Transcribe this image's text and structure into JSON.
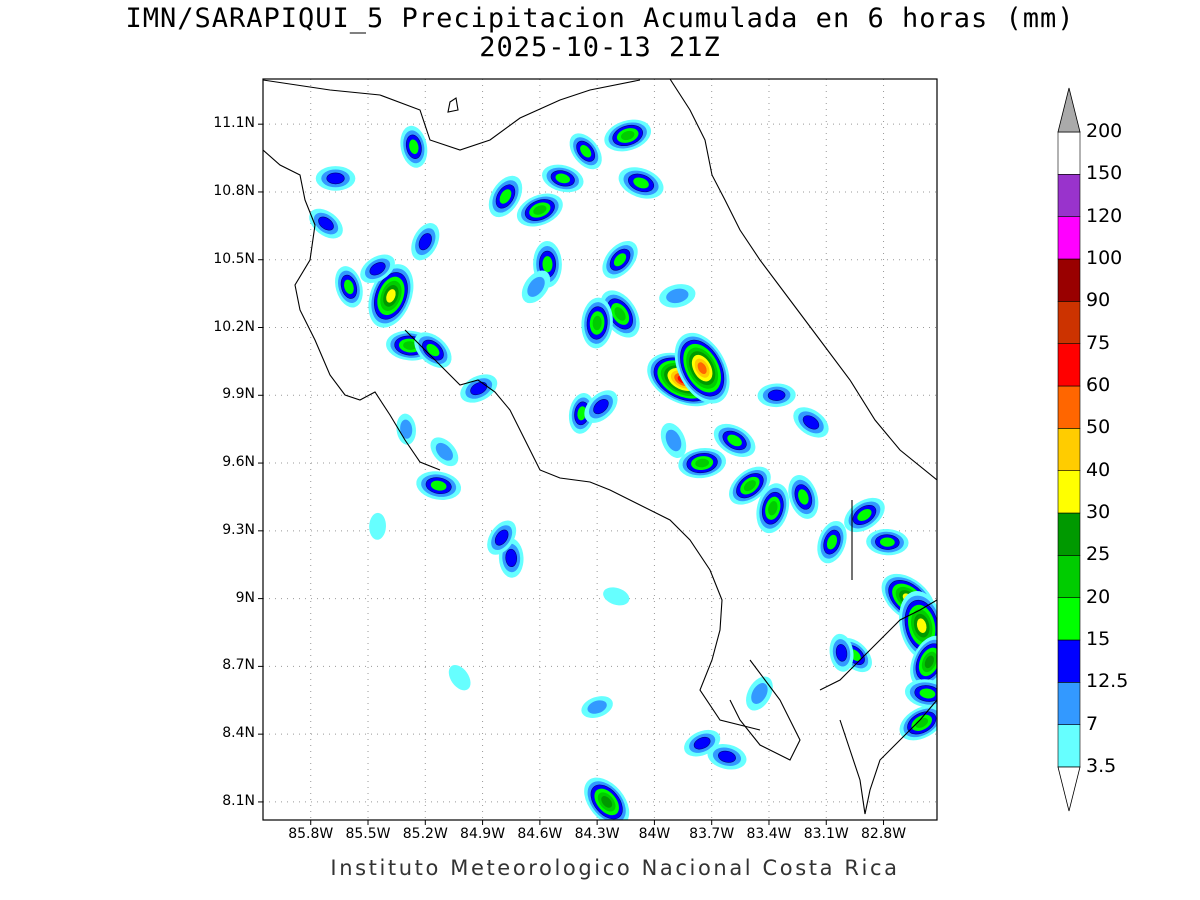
{
  "title": "IMN/SARAPIQUI_5 Precipitacion Acumulada en 6 horas (mm)",
  "subtitle": "2025-10-13 21Z",
  "footer": "Instituto Meteorologico Nacional Costa Rica",
  "map": {
    "lon_range": [
      -86.05,
      -82.52
    ],
    "lat_range": [
      8.02,
      11.3
    ],
    "gridlines": "dotted",
    "lat_ticks": [
      {
        "value": 11.1,
        "label": "11.1N"
      },
      {
        "value": 10.8,
        "label": "10.8N"
      },
      {
        "value": 10.5,
        "label": "10.5N"
      },
      {
        "value": 10.2,
        "label": "10.2N"
      },
      {
        "value": 9.9,
        "label": "9.9N"
      },
      {
        "value": 9.6,
        "label": "9.6N"
      },
      {
        "value": 9.3,
        "label": "9.3N"
      },
      {
        "value": 9.0,
        "label": "9N"
      },
      {
        "value": 8.7,
        "label": "8.7N"
      },
      {
        "value": 8.4,
        "label": "8.4N"
      },
      {
        "value": 8.1,
        "label": "8.1N"
      }
    ],
    "lon_ticks": [
      {
        "value": -85.8,
        "label": "85.8W"
      },
      {
        "value": -85.5,
        "label": "85.5W"
      },
      {
        "value": -85.2,
        "label": "85.2W"
      },
      {
        "value": -84.9,
        "label": "84.9W"
      },
      {
        "value": -84.6,
        "label": "84.6W"
      },
      {
        "value": -84.3,
        "label": "84.3W"
      },
      {
        "value": -84.0,
        "label": "84W"
      },
      {
        "value": -83.7,
        "label": "83.7W"
      },
      {
        "value": -83.4,
        "label": "83.4W"
      },
      {
        "value": -83.1,
        "label": "83.1W"
      },
      {
        "value": -82.8,
        "label": "82.8W"
      }
    ],
    "precip_cells": [
      {
        "lon": -85.67,
        "lat": 10.86,
        "mm": 14
      },
      {
        "lon": -85.72,
        "lat": 10.66,
        "mm": 13
      },
      {
        "lon": -85.6,
        "lat": 10.38,
        "mm": 16
      },
      {
        "lon": -85.38,
        "lat": 10.34,
        "mm": 33
      },
      {
        "lon": -85.45,
        "lat": 10.46,
        "mm": 13
      },
      {
        "lon": -85.28,
        "lat": 10.12,
        "mm": 20
      },
      {
        "lon": -85.16,
        "lat": 10.1,
        "mm": 17
      },
      {
        "lon": -85.26,
        "lat": 11.0,
        "mm": 16
      },
      {
        "lon": -85.2,
        "lat": 10.58,
        "mm": 14
      },
      {
        "lon": -84.92,
        "lat": 9.93,
        "mm": 14
      },
      {
        "lon": -85.13,
        "lat": 9.5,
        "mm": 18
      },
      {
        "lon": -85.1,
        "lat": 9.65,
        "mm": 10
      },
      {
        "lon": -85.3,
        "lat": 9.75,
        "mm": 8
      },
      {
        "lon": -84.78,
        "lat": 10.78,
        "mm": 18
      },
      {
        "lon": -84.6,
        "lat": 10.72,
        "mm": 20
      },
      {
        "lon": -84.48,
        "lat": 10.86,
        "mm": 16
      },
      {
        "lon": -84.36,
        "lat": 10.98,
        "mm": 15
      },
      {
        "lon": -84.56,
        "lat": 10.48,
        "mm": 19
      },
      {
        "lon": -84.62,
        "lat": 10.38,
        "mm": 12
      },
      {
        "lon": -84.14,
        "lat": 11.05,
        "mm": 20
      },
      {
        "lon": -84.07,
        "lat": 10.84,
        "mm": 19
      },
      {
        "lon": -84.18,
        "lat": 10.26,
        "mm": 23
      },
      {
        "lon": -84.3,
        "lat": 10.22,
        "mm": 22
      },
      {
        "lon": -84.18,
        "lat": 10.5,
        "mm": 17
      },
      {
        "lon": -83.88,
        "lat": 10.34,
        "mm": 12
      },
      {
        "lon": -83.85,
        "lat": 9.97,
        "mm": 65
      },
      {
        "lon": -83.75,
        "lat": 10.02,
        "mm": 55
      },
      {
        "lon": -84.38,
        "lat": 9.82,
        "mm": 15
      },
      {
        "lon": -84.28,
        "lat": 9.85,
        "mm": 14
      },
      {
        "lon": -83.75,
        "lat": 9.6,
        "mm": 20
      },
      {
        "lon": -83.58,
        "lat": 9.7,
        "mm": 18
      },
      {
        "lon": -83.9,
        "lat": 9.7,
        "mm": 12
      },
      {
        "lon": -83.38,
        "lat": 9.4,
        "mm": 22
      },
      {
        "lon": -83.5,
        "lat": 9.5,
        "mm": 20
      },
      {
        "lon": -83.36,
        "lat": 9.9,
        "mm": 13
      },
      {
        "lon": -83.18,
        "lat": 9.78,
        "mm": 14
      },
      {
        "lon": -83.22,
        "lat": 9.45,
        "mm": 18
      },
      {
        "lon": -83.07,
        "lat": 9.25,
        "mm": 17
      },
      {
        "lon": -82.9,
        "lat": 9.37,
        "mm": 18
      },
      {
        "lon": -82.78,
        "lat": 9.25,
        "mm": 16
      },
      {
        "lon": -82.67,
        "lat": 9.0,
        "mm": 30
      },
      {
        "lon": -82.6,
        "lat": 8.88,
        "mm": 36
      },
      {
        "lon": -82.56,
        "lat": 8.72,
        "mm": 25
      },
      {
        "lon": -82.6,
        "lat": 8.45,
        "mm": 20
      },
      {
        "lon": -82.57,
        "lat": 8.58,
        "mm": 18
      },
      {
        "lon": -82.95,
        "lat": 8.75,
        "mm": 15
      },
      {
        "lon": -83.02,
        "lat": 8.76,
        "mm": 13
      },
      {
        "lon": -83.45,
        "lat": 8.58,
        "mm": 12
      },
      {
        "lon": -83.75,
        "lat": 8.36,
        "mm": 13
      },
      {
        "lon": -83.62,
        "lat": 8.3,
        "mm": 14
      },
      {
        "lon": -84.25,
        "lat": 8.1,
        "mm": 26
      },
      {
        "lon": -84.75,
        "lat": 9.18,
        "mm": 14
      },
      {
        "lon": -84.8,
        "lat": 9.27,
        "mm": 13
      },
      {
        "lon": -84.3,
        "lat": 8.52,
        "mm": 9
      },
      {
        "lon": -84.2,
        "lat": 9.01,
        "mm": 5
      },
      {
        "lon": -85.02,
        "lat": 8.65,
        "mm": 6
      },
      {
        "lon": -85.45,
        "lat": 9.32,
        "mm": 5
      }
    ]
  },
  "colorbar": {
    "levels": [
      "3.5",
      "7",
      "12.5",
      "15",
      "20",
      "25",
      "30",
      "40",
      "50",
      "60",
      "75",
      "90",
      "100",
      "120",
      "150",
      "200"
    ],
    "colors": [
      "#66ffff",
      "#3399ff",
      "#0000ff",
      "#00ff00",
      "#00cc00",
      "#009900",
      "#ffff00",
      "#ffcc00",
      "#ff6600",
      "#ff0000",
      "#cc3300",
      "#990000",
      "#ff00ff",
      "#9933cc",
      "#ffffff",
      "#aaaaaa"
    ]
  }
}
